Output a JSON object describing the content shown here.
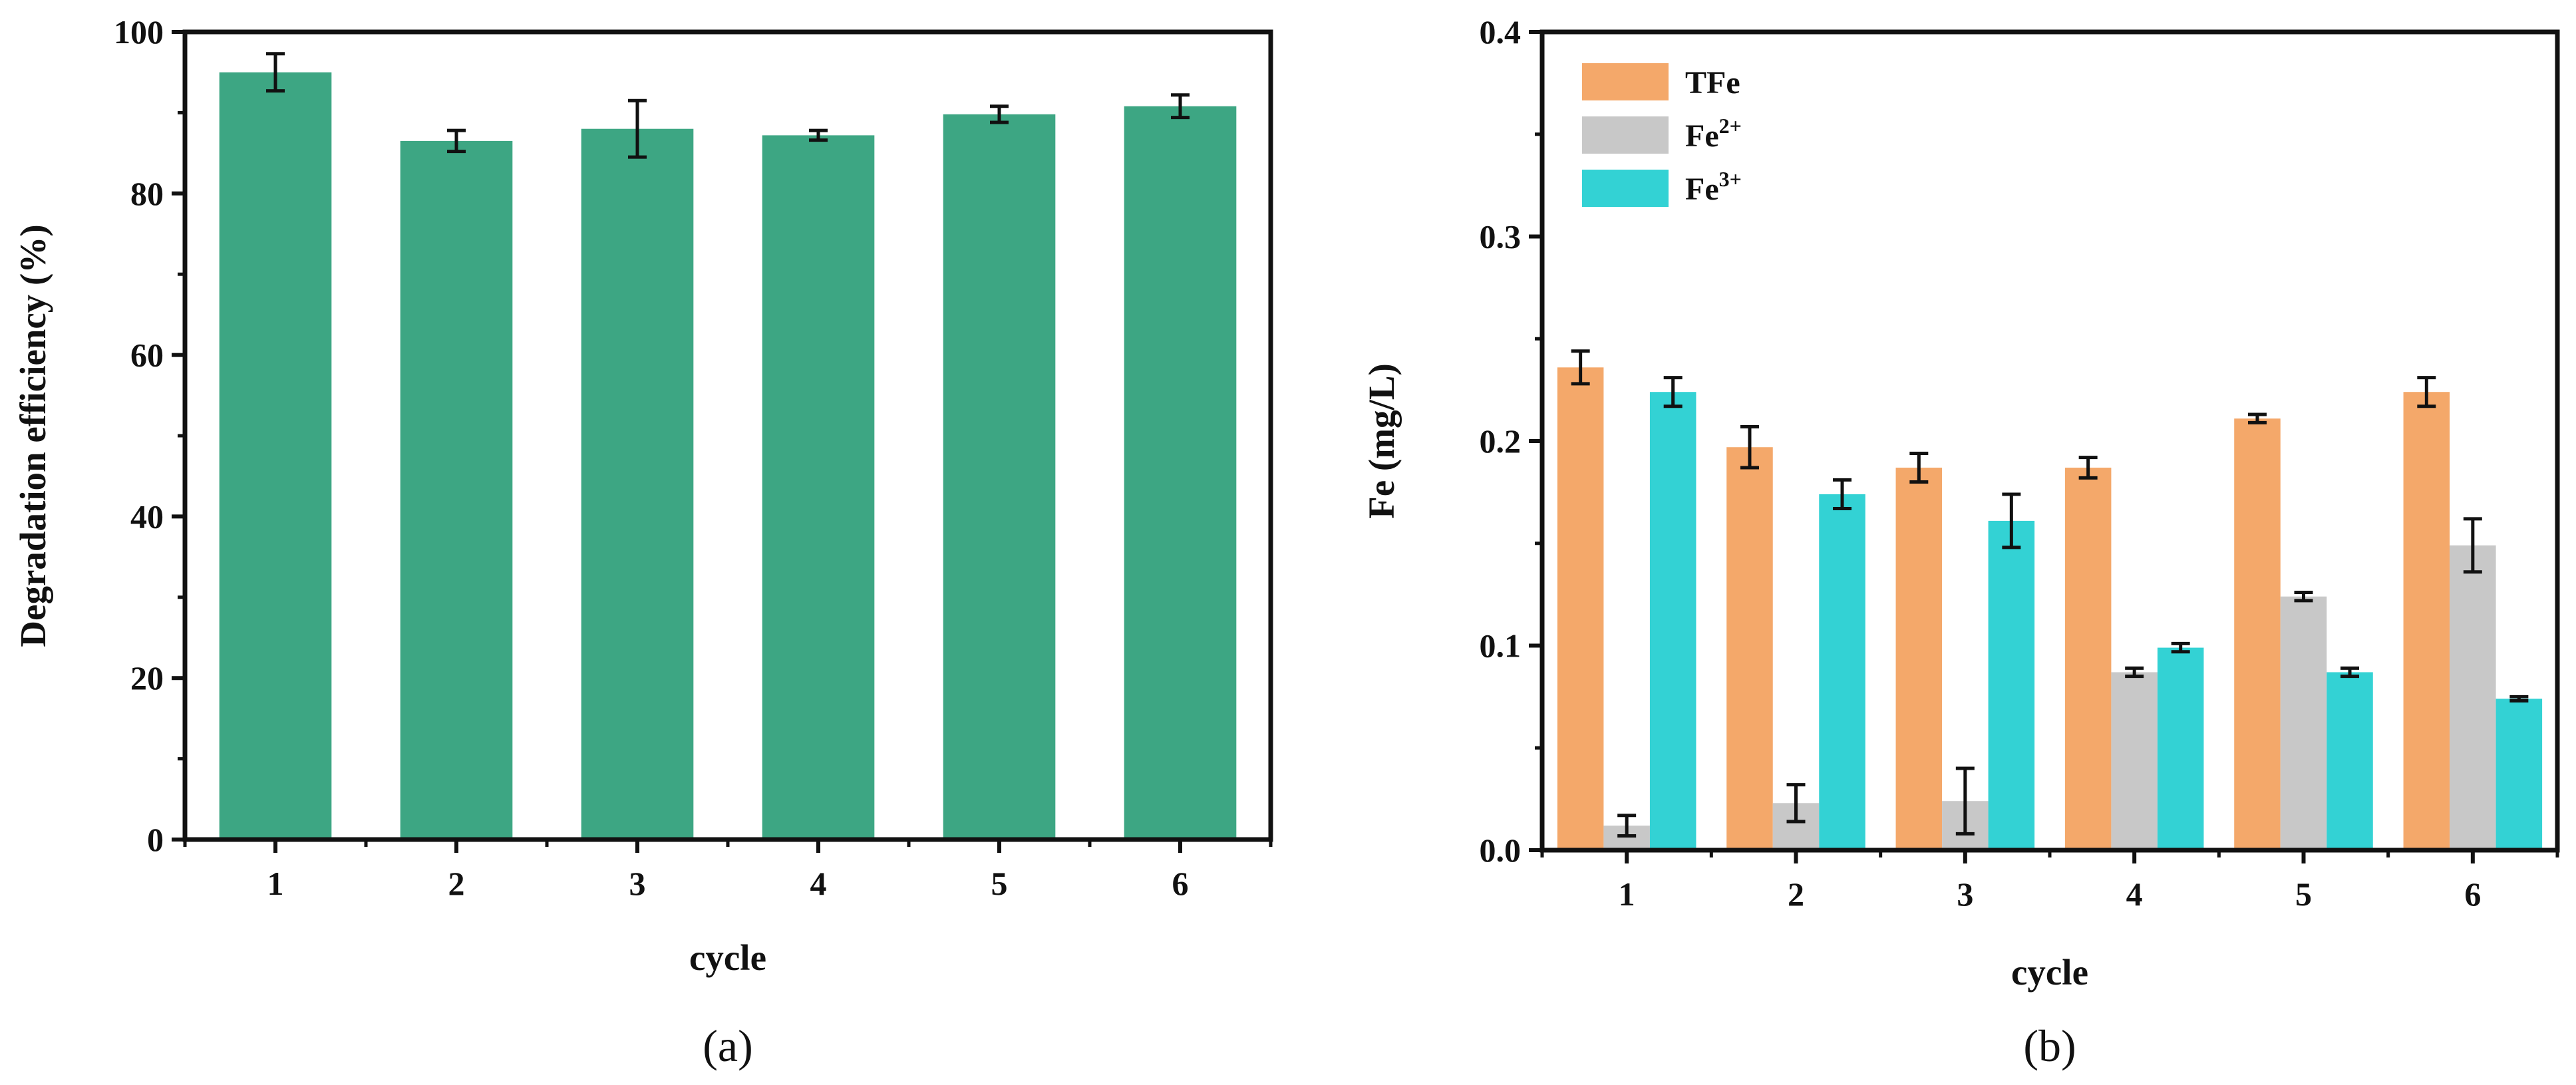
{
  "chart_data": [
    {
      "panel": "(a)",
      "type": "bar",
      "title": "",
      "xlabel": "cycle",
      "ylabel": "Degradation efficiency (%)",
      "categories": [
        "1",
        "2",
        "3",
        "4",
        "5",
        "6"
      ],
      "ylim": [
        0,
        100
      ],
      "yticks": [
        "0",
        "20",
        "40",
        "60",
        "80",
        "100"
      ],
      "grid": false,
      "series": [
        {
          "name": "Degradation efficiency",
          "color": "#3da683",
          "values": [
            95.0,
            86.5,
            88.0,
            87.2,
            89.8,
            90.8
          ],
          "errors": [
            2.3,
            1.3,
            3.5,
            0.6,
            1.0,
            1.4
          ]
        }
      ]
    },
    {
      "panel": "(b)",
      "type": "bar",
      "title": "",
      "xlabel": "cycle",
      "ylabel": "Fe (mg/L)",
      "categories": [
        "1",
        "2",
        "3",
        "4",
        "5",
        "6"
      ],
      "ylim": [
        0,
        0.4
      ],
      "yticks": [
        "0.0",
        "0.1",
        "0.2",
        "0.3",
        "0.4"
      ],
      "grid": false,
      "legend_position": "top-left",
      "series": [
        {
          "name": "TFe",
          "label_base": "TFe",
          "label_sup": "",
          "color": "#f4a86a",
          "values": [
            0.236,
            0.197,
            0.187,
            0.187,
            0.211,
            0.224
          ],
          "errors": [
            0.008,
            0.01,
            0.007,
            0.005,
            0.002,
            0.007
          ]
        },
        {
          "name": "Fe2+",
          "label_base": "Fe",
          "label_sup": "2+",
          "color": "#c8c8c8",
          "values": [
            0.012,
            0.023,
            0.024,
            0.087,
            0.124,
            0.149
          ],
          "errors": [
            0.005,
            0.009,
            0.016,
            0.002,
            0.002,
            0.013
          ]
        },
        {
          "name": "Fe3+",
          "label_base": "Fe",
          "label_sup": "3+",
          "color": "#33d2d4",
          "values": [
            0.224,
            0.174,
            0.161,
            0.099,
            0.087,
            0.074
          ],
          "errors": [
            0.007,
            0.007,
            0.013,
            0.002,
            0.002,
            0.001
          ]
        }
      ]
    }
  ]
}
